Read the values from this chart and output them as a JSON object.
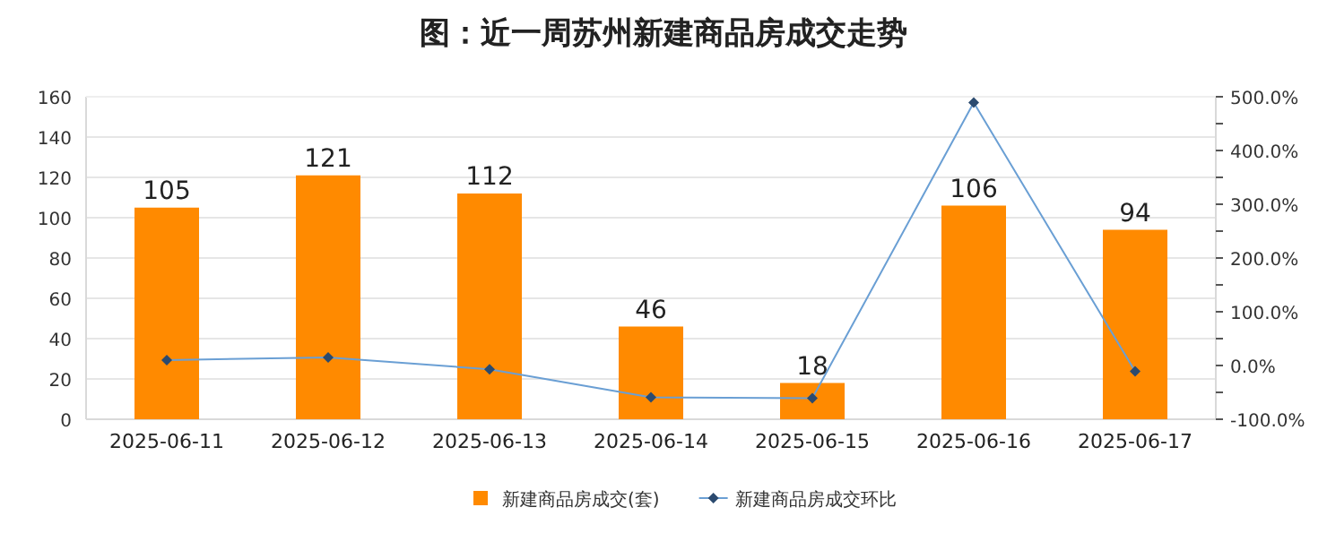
{
  "chart_data": {
    "type": "bar",
    "title": "图：近一周苏州新建商品房成交走势",
    "categories": [
      "2025-06-11",
      "2025-06-12",
      "2025-06-13",
      "2025-06-14",
      "2025-06-15",
      "2025-06-16",
      "2025-06-17"
    ],
    "series": [
      {
        "name": "新建商品房成交(套)",
        "color": "#ff8a00",
        "values": [
          105,
          121,
          112,
          46,
          18,
          106,
          94
        ],
        "data_labels": true
      },
      {
        "name": "新建商品房成交环比",
        "type": "line",
        "axis": "y2",
        "color": "#6a9fd4",
        "marker": "diamond",
        "values": [
          10,
          15,
          -7,
          -59,
          -61,
          489,
          -11
        ]
      }
    ],
    "ylim": [
      0,
      160
    ],
    "yticks": [
      0,
      20,
      40,
      60,
      80,
      100,
      120,
      140,
      160
    ],
    "y2lim": [
      -100,
      500
    ],
    "y2ticks": [
      {
        "value": -100,
        "label": "-100.0%"
      },
      {
        "value": -50,
        "label": null
      },
      {
        "value": 0,
        "label": "0.0%"
      },
      {
        "value": 50,
        "label": null
      },
      {
        "value": 100,
        "label": "100.0%"
      },
      {
        "value": 150,
        "label": null
      },
      {
        "value": 200,
        "label": "200.0%"
      },
      {
        "value": 250,
        "label": null
      },
      {
        "value": 300,
        "label": "300.0%"
      },
      {
        "value": 350,
        "label": null
      },
      {
        "value": 400,
        "label": "400.0%"
      },
      {
        "value": 450,
        "label": null
      },
      {
        "value": 500,
        "label": "500.0%"
      }
    ],
    "grid": "y",
    "legend": "bottom"
  }
}
